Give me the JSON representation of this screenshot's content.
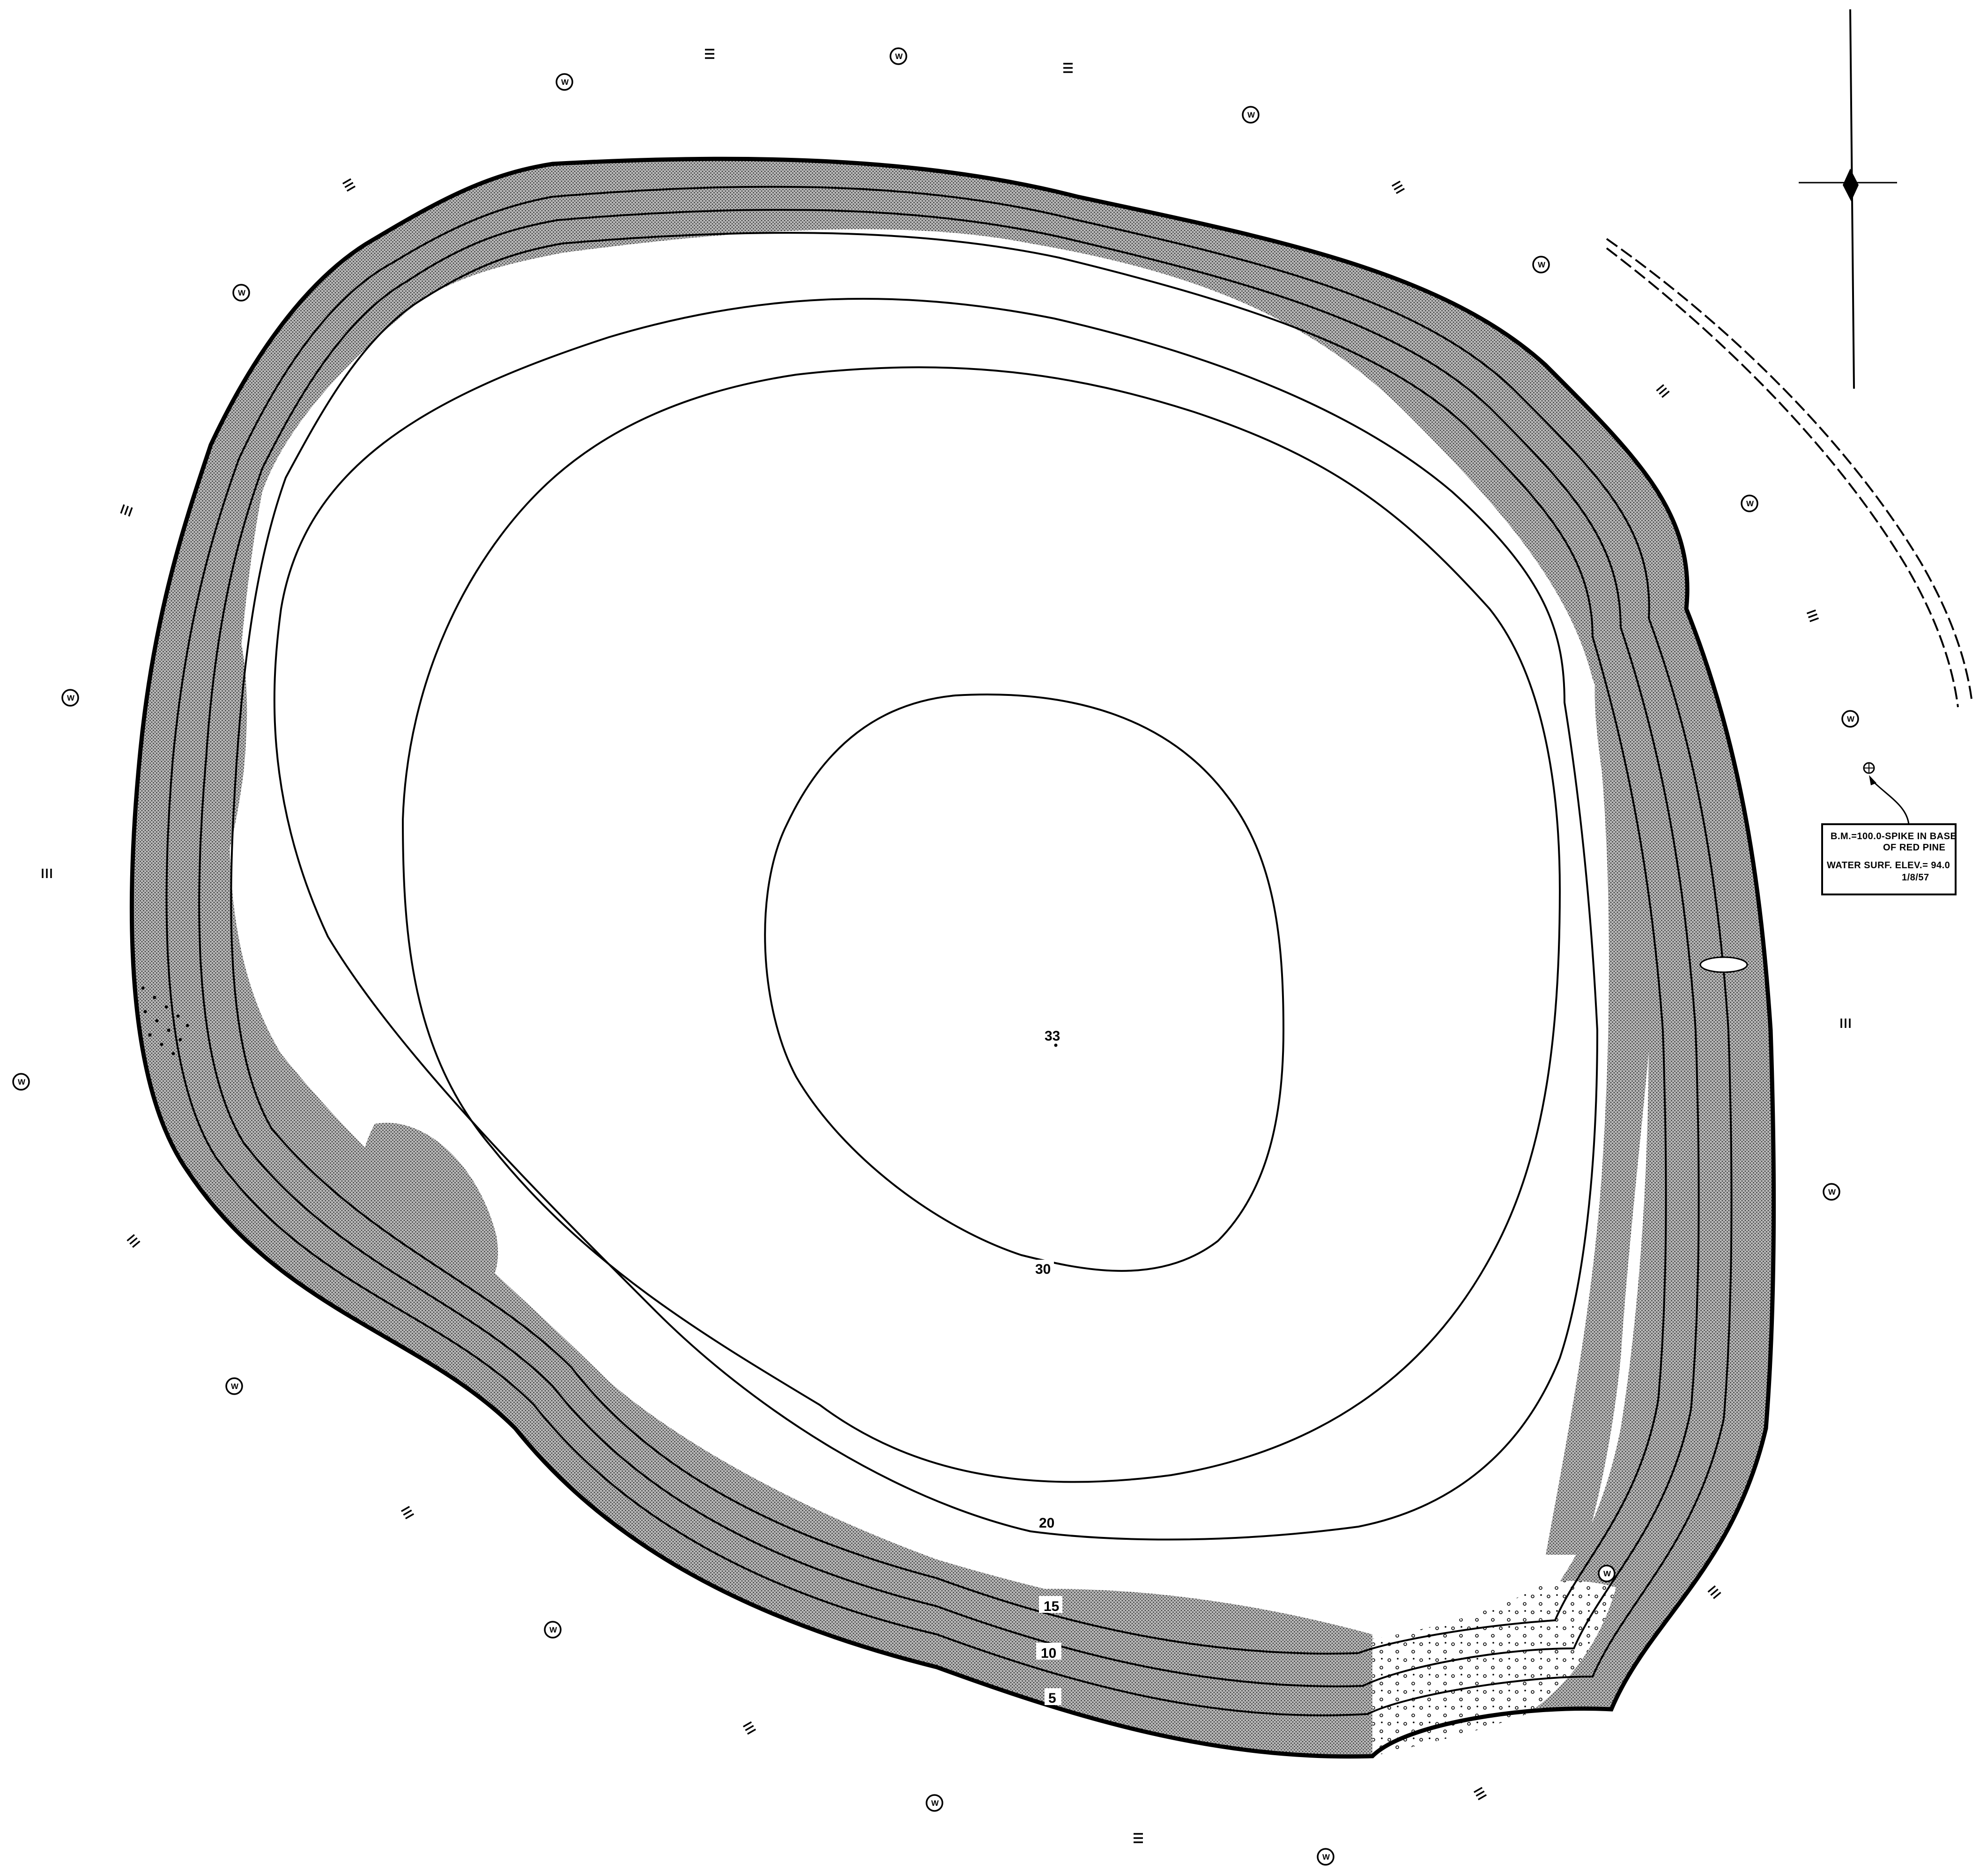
{
  "contour_labels": {
    "c33": "33",
    "c30": "30",
    "c20": "20",
    "c15": "15",
    "c10": "10",
    "c5": "5"
  },
  "legend": {
    "benchmark_line1": "B.M.=100.0-SPIKE IN BASE",
    "benchmark_line2": "OF RED PINE",
    "water_line1": "WATER SURF. ELEV.= 94.0",
    "water_line2": "1/8/57"
  },
  "symbols": {
    "wooded": "W",
    "marsh": "marsh-symbol"
  },
  "colors": {
    "ink": "#000000",
    "paper": "#ffffff",
    "shoal_stipple": "#8a8a8a"
  }
}
